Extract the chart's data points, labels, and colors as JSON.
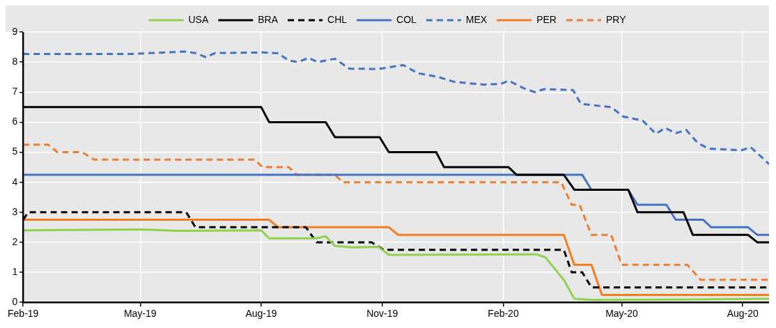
{
  "chart_data": {
    "type": "line",
    "legend": "top",
    "grid": true,
    "marker": "none",
    "xlim": [
      "2019-02-01",
      "2020-08-21"
    ],
    "xticks": [
      {
        "value": "2019-02-01",
        "label": "Feb-19"
      },
      {
        "value": "2019-05-01",
        "label": "May-19"
      },
      {
        "value": "2019-08-01",
        "label": "Aug-19"
      },
      {
        "value": "2019-11-01",
        "label": "Nov-19"
      },
      {
        "value": "2020-02-01",
        "label": "Feb-20"
      },
      {
        "value": "2020-05-01",
        "label": "May-20"
      },
      {
        "value": "2020-08-01",
        "label": "Aug-20"
      }
    ],
    "ylim": [
      0,
      9
    ],
    "yticks": [
      0,
      1,
      2,
      3,
      4,
      5,
      6,
      7,
      8,
      9
    ],
    "series": [
      {
        "name": "USA",
        "color": "#92d050",
        "line_style": "solid",
        "x": [
          "2019-02-01",
          "2019-05-01",
          "2019-06-01",
          "2019-08-01",
          "2019-08-07",
          "2019-09-12",
          "2019-09-19",
          "2019-09-26",
          "2019-10-09",
          "2019-10-29",
          "2019-11-06",
          "2020-02-26",
          "2020-03-04",
          "2020-03-18",
          "2020-03-26",
          "2020-04-09",
          "2020-07-01",
          "2020-08-21"
        ],
        "values": [
          2.4,
          2.43,
          2.38,
          2.4,
          2.13,
          2.13,
          2.2,
          1.88,
          1.83,
          1.85,
          1.58,
          1.6,
          1.5,
          0.75,
          0.12,
          0.08,
          0.1,
          0.12
        ]
      },
      {
        "name": "BRA",
        "color": "#000000",
        "line_style": "solid",
        "x": [
          "2019-02-01",
          "2019-08-01",
          "2019-08-07",
          "2019-09-19",
          "2019-09-26",
          "2019-10-30",
          "2019-11-06",
          "2019-12-12",
          "2019-12-18",
          "2020-02-05",
          "2020-02-11",
          "2020-03-18",
          "2020-03-26",
          "2020-05-06",
          "2020-05-13",
          "2020-06-17",
          "2020-06-24",
          "2020-08-05",
          "2020-08-12",
          "2020-08-21"
        ],
        "values": [
          6.5,
          6.5,
          6.0,
          6.0,
          5.5,
          5.5,
          5.0,
          5.0,
          4.5,
          4.5,
          4.25,
          4.25,
          3.75,
          3.75,
          3.0,
          3.0,
          2.25,
          2.25,
          2.0,
          2.0
        ]
      },
      {
        "name": "CHL",
        "color": "#000000",
        "line_style": "dashed",
        "x": [
          "2019-02-01",
          "2019-02-05",
          "2019-06-05",
          "2019-06-12",
          "2019-09-04",
          "2019-09-12",
          "2019-10-24",
          "2019-11-02",
          "2020-03-18",
          "2020-03-24",
          "2020-04-01",
          "2020-04-08",
          "2020-08-21"
        ],
        "values": [
          2.75,
          3.0,
          3.0,
          2.5,
          2.5,
          2.0,
          2.0,
          1.75,
          1.75,
          1.0,
          1.0,
          0.5,
          0.5
        ]
      },
      {
        "name": "COL",
        "color": "#4472c4",
        "line_style": "solid",
        "x": [
          "2019-02-01",
          "2020-04-01",
          "2020-04-08",
          "2020-05-06",
          "2020-05-13",
          "2020-06-04",
          "2020-06-11",
          "2020-07-02",
          "2020-07-08",
          "2020-08-05",
          "2020-08-12",
          "2020-08-21"
        ],
        "values": [
          4.25,
          4.25,
          3.75,
          3.75,
          3.25,
          3.25,
          2.75,
          2.75,
          2.5,
          2.5,
          2.25,
          2.25
        ]
      },
      {
        "name": "MEX",
        "color": "#4472c4",
        "line_style": "dashed",
        "x": [
          "2019-02-01",
          "2019-04-24",
          "2019-06-04",
          "2019-06-12",
          "2019-06-20",
          "2019-06-27",
          "2019-08-02",
          "2019-08-14",
          "2019-08-22",
          "2019-08-29",
          "2019-09-06",
          "2019-09-13",
          "2019-09-26",
          "2019-10-07",
          "2019-10-29",
          "2019-11-17",
          "2019-11-28",
          "2019-12-13",
          "2019-12-26",
          "2020-01-17",
          "2020-01-30",
          "2020-02-05",
          "2020-02-17",
          "2020-02-25",
          "2020-03-03",
          "2020-03-25",
          "2020-03-31",
          "2020-04-23",
          "2020-05-02",
          "2020-05-17",
          "2020-05-27",
          "2020-06-03",
          "2020-06-11",
          "2020-06-19",
          "2020-06-28",
          "2020-07-06",
          "2020-07-31",
          "2020-08-07",
          "2020-08-17",
          "2020-08-21"
        ],
        "values": [
          8.27,
          8.27,
          8.35,
          8.3,
          8.16,
          8.3,
          8.32,
          8.29,
          8.05,
          8.0,
          8.14,
          8.0,
          8.11,
          7.78,
          7.77,
          7.9,
          7.63,
          7.51,
          7.34,
          7.25,
          7.27,
          7.38,
          7.12,
          7.0,
          7.1,
          7.07,
          6.61,
          6.5,
          6.19,
          6.05,
          5.61,
          5.81,
          5.63,
          5.74,
          5.3,
          5.12,
          5.06,
          5.17,
          4.77,
          4.6
        ]
      },
      {
        "name": "PER",
        "color": "#f47d20",
        "line_style": "solid",
        "x": [
          "2019-02-01",
          "2019-08-07",
          "2019-08-14",
          "2019-11-06",
          "2019-11-13",
          "2020-03-18",
          "2020-03-26",
          "2020-04-08",
          "2020-04-16",
          "2020-08-21"
        ],
        "values": [
          2.75,
          2.75,
          2.5,
          2.5,
          2.25,
          2.25,
          1.25,
          1.25,
          0.25,
          0.25
        ]
      },
      {
        "name": "PRY",
        "color": "#ed7d31",
        "line_style": "dashed",
        "x": [
          "2019-02-01",
          "2019-02-20",
          "2019-02-27",
          "2019-03-18",
          "2019-03-27",
          "2019-07-27",
          "2019-08-02",
          "2019-08-22",
          "2019-08-28",
          "2019-09-26",
          "2019-10-02",
          "2020-03-16",
          "2020-03-24",
          "2020-03-30",
          "2020-04-08",
          "2020-04-23",
          "2020-05-01",
          "2020-06-20",
          "2020-06-30",
          "2020-08-21"
        ],
        "values": [
          5.25,
          5.25,
          5.0,
          5.0,
          4.75,
          4.75,
          4.5,
          4.5,
          4.25,
          4.25,
          4.0,
          4.0,
          3.25,
          3.25,
          2.25,
          2.25,
          1.25,
          1.25,
          0.75,
          0.75
        ]
      }
    ]
  }
}
